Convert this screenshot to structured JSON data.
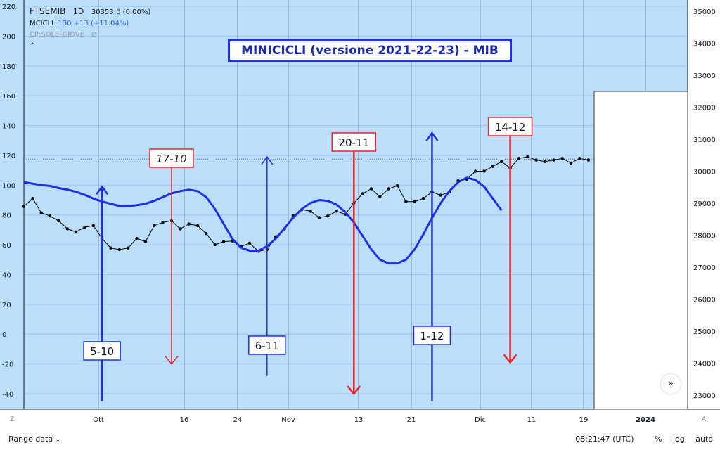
{
  "legend": {
    "symbol": "FTSEMIB",
    "interval": "1D",
    "price": "30353",
    "change": "0 (0.00%)",
    "indicator_name": "MCICLI",
    "indicator_value": "130",
    "indicator_change": "+13 (+11.04%)",
    "overlay_label": "CP:SOLE-GIOVE",
    "collapse_label": "^"
  },
  "title": "MINICICLI (versione 2021-22-23) - MIB",
  "left_axis_ticks": [
    "220",
    "200",
    "180",
    "160",
    "140",
    "120",
    "100",
    "80",
    "60",
    "40",
    "20",
    "0",
    "-20",
    "-40"
  ],
  "right_axis_ticks": [
    "35000",
    "34000",
    "33000",
    "32000",
    "31000",
    "30000",
    "29000",
    "28000",
    "27000",
    "26000",
    "25000",
    "24000",
    "23000"
  ],
  "time_ticks": [
    "Ott",
    "16",
    "24",
    "Nov",
    "13",
    "21",
    "Dic",
    "11",
    "19",
    "2024"
  ],
  "markers": {
    "blue": [
      "5-10",
      "6-11",
      "1-12"
    ],
    "red": [
      "17-10",
      "20-11",
      "14-12"
    ]
  },
  "corner_left": "Z",
  "corner_right": "A",
  "bottom_bar": {
    "range_label": "Range data",
    "time": "08:21:47 (UTC)",
    "percent": "%",
    "log": "log",
    "auto": "auto"
  },
  "nav_glyph": "»",
  "chart_data": {
    "type": "line",
    "x_labels": [
      "Ott",
      "16",
      "24",
      "Nov",
      "13",
      "21",
      "Dic",
      "11",
      "19",
      "2024"
    ],
    "series": [
      {
        "name": "FTSEMIB",
        "axis": "right",
        "color": "#000000",
        "values": [
          28900,
          29150,
          28700,
          28600,
          28450,
          28200,
          28100,
          28250,
          28300,
          27900,
          27600,
          27550,
          27600,
          27900,
          27800,
          28300,
          28400,
          28450,
          28200,
          28350,
          28300,
          28050,
          27700,
          27800,
          27820,
          27650,
          27750,
          27500,
          27550,
          27950,
          28200,
          28600,
          28800,
          28750,
          28550,
          28600,
          28750,
          28650,
          29000,
          29300,
          29450,
          29200,
          29450,
          29550,
          29050,
          29050,
          29150,
          29350,
          29250,
          29350,
          29700,
          29750,
          30000,
          30000,
          30150,
          30300,
          30100,
          30400,
          30450,
          30350,
          30300,
          30350,
          30400,
          30250,
          30400,
          30350
        ]
      },
      {
        "name": "MCICLI",
        "axis": "left",
        "color": "#1f2fe8",
        "values": [
          102,
          101,
          100,
          99.5,
          98,
          97,
          95.5,
          93.5,
          91,
          89,
          87.5,
          86,
          86,
          86.5,
          87.5,
          89.5,
          92,
          94.5,
          96,
          97,
          96,
          92,
          84,
          74,
          64,
          58,
          56,
          56,
          59,
          64,
          71,
          78,
          84,
          88,
          90,
          89.5,
          87,
          82,
          75,
          66,
          57,
          50,
          47.5,
          47.5,
          50,
          57,
          67,
          78,
          88,
          96,
          102,
          105,
          103.5,
          99,
          91,
          83
        ]
      }
    ],
    "dotted_reference": 117.5,
    "left_ylim": [
      -45,
      225
    ],
    "right_ylim": [
      22650,
      35250
    ],
    "grid": true,
    "vertical_markers": [
      {
        "label": "5-10",
        "color": "blue",
        "x_index": 9,
        "direction": "up",
        "top": 99,
        "bottom": -45
      },
      {
        "label": "17-10",
        "color": "red",
        "x_index": 17,
        "direction": "down",
        "top": 114,
        "bottom": -20
      },
      {
        "label": "6-11",
        "color": "blue",
        "x_index": 28,
        "direction": "up",
        "top": 119,
        "bottom": -28
      },
      {
        "label": "20-11",
        "color": "red",
        "x_index": 38,
        "direction": "down",
        "top": 135,
        "bottom": -40
      },
      {
        "label": "1-12",
        "color": "blue",
        "x_index": 47,
        "direction": "up",
        "top": 135,
        "bottom": -45
      },
      {
        "label": "14-12",
        "color": "red",
        "x_index": 56,
        "direction": "down",
        "top": 134,
        "bottom": -19
      }
    ]
  }
}
